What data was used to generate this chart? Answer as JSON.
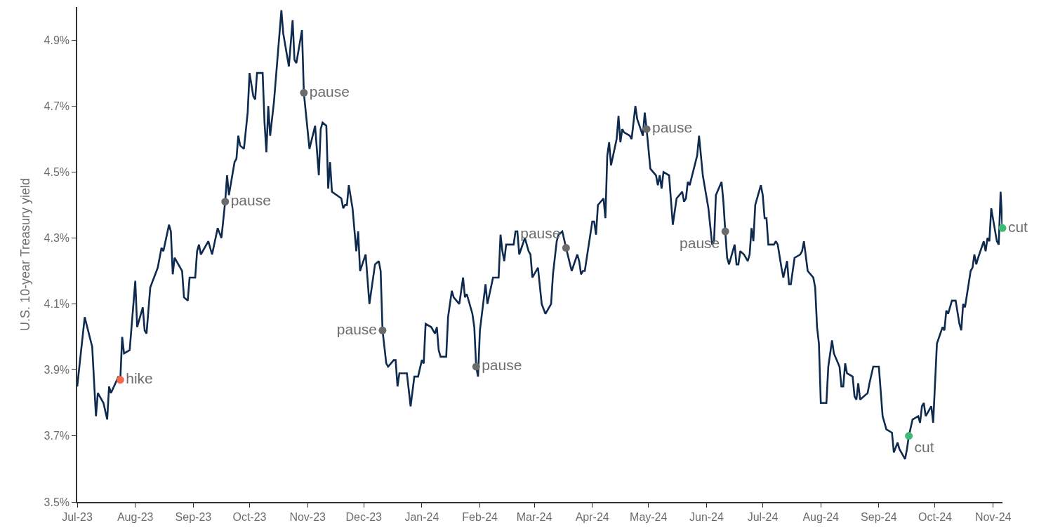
{
  "chart_data": {
    "type": "line",
    "ylabel": "U.S. 10-year Treasury yield",
    "xlim": [
      "2023-07-01",
      "2024-11-06"
    ],
    "xticks": [
      {
        "value": "2023-07-01",
        "label": "Jul-23"
      },
      {
        "value": "2023-08-01",
        "label": "Aug-23"
      },
      {
        "value": "2023-09-01",
        "label": "Sep-23"
      },
      {
        "value": "2023-10-01",
        "label": "Oct-23"
      },
      {
        "value": "2023-11-01",
        "label": "Nov-23"
      },
      {
        "value": "2023-12-01",
        "label": "Dec-23"
      },
      {
        "value": "2024-01-01",
        "label": "Jan-24"
      },
      {
        "value": "2024-02-01",
        "label": "Feb-24"
      },
      {
        "value": "2024-03-01",
        "label": "Mar-24"
      },
      {
        "value": "2024-04-01",
        "label": "Apr-24"
      },
      {
        "value": "2024-05-01",
        "label": "May-24"
      },
      {
        "value": "2024-06-01",
        "label": "Jun-24"
      },
      {
        "value": "2024-07-01",
        "label": "Jul-24"
      },
      {
        "value": "2024-08-01",
        "label": "Aug-24"
      },
      {
        "value": "2024-09-01",
        "label": "Sep-24"
      },
      {
        "value": "2024-10-01",
        "label": "Oct-24"
      },
      {
        "value": "2024-11-01",
        "label": "Nov-24"
      }
    ],
    "ylim": [
      3.5,
      5.0
    ],
    "yticks": [
      {
        "value": 3.5,
        "label": "3.5%"
      },
      {
        "value": 3.7,
        "label": "3.7%"
      },
      {
        "value": 3.9,
        "label": "3.9%"
      },
      {
        "value": 4.1,
        "label": "4.1%"
      },
      {
        "value": 4.3,
        "label": "4.3%"
      },
      {
        "value": 4.5,
        "label": "4.5%"
      },
      {
        "value": 4.7,
        "label": "4.7%"
      },
      {
        "value": 4.9,
        "label": "4.9%"
      }
    ],
    "legend": false,
    "series": [
      {
        "color": "#0f2a4f",
        "x": [
          "2023-07-01",
          "2023-07-05",
          "2023-07-09",
          "2023-07-11",
          "2023-07-12",
          "2023-07-15",
          "2023-07-17",
          "2023-07-18",
          "2023-07-19",
          "2023-07-23",
          "2023-07-24",
          "2023-07-25",
          "2023-07-26",
          "2023-07-29",
          "2023-08-01",
          "2023-08-02",
          "2023-08-05",
          "2023-08-06",
          "2023-08-07",
          "2023-08-09",
          "2023-08-13",
          "2023-08-15",
          "2023-08-16",
          "2023-08-19",
          "2023-08-20",
          "2023-08-21",
          "2023-08-22",
          "2023-08-26",
          "2023-08-27",
          "2023-08-29",
          "2023-08-30",
          "2023-09-02",
          "2023-09-03",
          "2023-09-04",
          "2023-09-05",
          "2023-09-09",
          "2023-09-11",
          "2023-09-14",
          "2023-09-16",
          "2023-09-18",
          "2023-09-19",
          "2023-09-20",
          "2023-09-23",
          "2023-09-24",
          "2023-09-25",
          "2023-09-26",
          "2023-09-28",
          "2023-09-30",
          "2023-10-01",
          "2023-10-03",
          "2023-10-04",
          "2023-10-05",
          "2023-10-08",
          "2023-10-09",
          "2023-10-10",
          "2023-10-11",
          "2023-10-12",
          "2023-10-14",
          "2023-10-16",
          "2023-10-18",
          "2023-10-19",
          "2023-10-22",
          "2023-10-24",
          "2023-10-25",
          "2023-10-26",
          "2023-10-29",
          "2023-10-30",
          "2023-11-02",
          "2023-11-05",
          "2023-11-07",
          "2023-11-08",
          "2023-11-09",
          "2023-11-11",
          "2023-11-12",
          "2023-11-13",
          "2023-11-14",
          "2023-11-19",
          "2023-11-20",
          "2023-11-21",
          "2023-11-22",
          "2023-11-23",
          "2023-11-25",
          "2023-11-27",
          "2023-11-28",
          "2023-11-29",
          "2023-12-02",
          "2023-12-04",
          "2023-12-07",
          "2023-12-09",
          "2023-12-10",
          "2023-12-11",
          "2023-12-13",
          "2023-12-14",
          "2023-12-17",
          "2023-12-18",
          "2023-12-19",
          "2023-12-20",
          "2023-12-21",
          "2023-12-24",
          "2023-12-26",
          "2023-12-28",
          "2023-12-30",
          "2024-01-01",
          "2024-01-02",
          "2024-01-03",
          "2024-01-06",
          "2024-01-08",
          "2024-01-09",
          "2024-01-10",
          "2024-01-11",
          "2024-01-14",
          "2024-01-15",
          "2024-01-17",
          "2024-01-18",
          "2024-01-21",
          "2024-01-23",
          "2024-01-24",
          "2024-01-25",
          "2024-01-28",
          "2024-01-29",
          "2024-01-30",
          "2024-01-31",
          "2024-02-01",
          "2024-02-04",
          "2024-02-05",
          "2024-02-08",
          "2024-02-11",
          "2024-02-12",
          "2024-02-13",
          "2024-02-14",
          "2024-02-15",
          "2024-02-19",
          "2024-02-20",
          "2024-02-21",
          "2024-02-22",
          "2024-02-25",
          "2024-02-27",
          "2024-02-28",
          "2024-02-29",
          "2024-03-03",
          "2024-03-05",
          "2024-03-07",
          "2024-03-10",
          "2024-03-11",
          "2024-03-13",
          "2024-03-14",
          "2024-03-16",
          "2024-03-18",
          "2024-03-21",
          "2024-03-24",
          "2024-03-25",
          "2024-03-26",
          "2024-03-27",
          "2024-03-28",
          "2024-04-01",
          "2024-04-02",
          "2024-04-03",
          "2024-04-04",
          "2024-04-07",
          "2024-04-08",
          "2024-04-09",
          "2024-04-10",
          "2024-04-11",
          "2024-04-14",
          "2024-04-15",
          "2024-04-16",
          "2024-04-17",
          "2024-04-18",
          "2024-04-21",
          "2024-04-22",
          "2024-04-24",
          "2024-04-25",
          "2024-04-28",
          "2024-04-29",
          "2024-04-30",
          "2024-05-02",
          "2024-05-05",
          "2024-05-06",
          "2024-05-07",
          "2024-05-08",
          "2024-05-09",
          "2024-05-12",
          "2024-05-14",
          "2024-05-16",
          "2024-05-19",
          "2024-05-20",
          "2024-05-21",
          "2024-05-22",
          "2024-05-23",
          "2024-05-27",
          "2024-05-28",
          "2024-05-30",
          "2024-06-02",
          "2024-06-04",
          "2024-06-05",
          "2024-06-06",
          "2024-06-09",
          "2024-06-10",
          "2024-06-11",
          "2024-06-12",
          "2024-06-13",
          "2024-06-16",
          "2024-06-17",
          "2024-06-18",
          "2024-06-19",
          "2024-06-21",
          "2024-06-23",
          "2024-06-24",
          "2024-06-25",
          "2024-06-26",
          "2024-06-27",
          "2024-06-30",
          "2024-07-01",
          "2024-07-02",
          "2024-07-03",
          "2024-07-04",
          "2024-07-07",
          "2024-07-08",
          "2024-07-09",
          "2024-07-11",
          "2024-07-12",
          "2024-07-14",
          "2024-07-15",
          "2024-07-16",
          "2024-07-18",
          "2024-07-21",
          "2024-07-22",
          "2024-07-23",
          "2024-07-25",
          "2024-07-28",
          "2024-07-29",
          "2024-07-30",
          "2024-07-31",
          "2024-08-01",
          "2024-08-04",
          "2024-08-05",
          "2024-08-07",
          "2024-08-08",
          "2024-08-11",
          "2024-08-12",
          "2024-08-13",
          "2024-08-14",
          "2024-08-15",
          "2024-08-18",
          "2024-08-19",
          "2024-08-20",
          "2024-08-21",
          "2024-08-22",
          "2024-08-26",
          "2024-08-27",
          "2024-08-29",
          "2024-09-01",
          "2024-09-03",
          "2024-09-05",
          "2024-09-08",
          "2024-09-09",
          "2024-09-11",
          "2024-09-12",
          "2024-09-15",
          "2024-09-16",
          "2024-09-17",
          "2024-09-19",
          "2024-09-22",
          "2024-09-23",
          "2024-09-24",
          "2024-09-25",
          "2024-09-26",
          "2024-09-29",
          "2024-09-30",
          "2024-10-01",
          "2024-10-02",
          "2024-10-05",
          "2024-10-06",
          "2024-10-07",
          "2024-10-08",
          "2024-10-10",
          "2024-10-12",
          "2024-10-14",
          "2024-10-15",
          "2024-10-16",
          "2024-10-17",
          "2024-10-20",
          "2024-10-21",
          "2024-10-22",
          "2024-10-23",
          "2024-10-24",
          "2024-10-27",
          "2024-10-28",
          "2024-10-29",
          "2024-10-30",
          "2024-10-31",
          "2024-11-03",
          "2024-11-04",
          "2024-11-05",
          "2024-11-06"
        ],
        "values": [
          3.85,
          4.06,
          3.97,
          3.76,
          3.83,
          3.8,
          3.75,
          3.85,
          3.83,
          3.88,
          3.87,
          4.0,
          3.95,
          3.96,
          4.17,
          4.03,
          4.09,
          4.02,
          4.01,
          4.15,
          4.21,
          4.27,
          4.26,
          4.34,
          4.32,
          4.19,
          4.24,
          4.2,
          4.12,
          4.11,
          4.18,
          4.18,
          4.26,
          4.28,
          4.25,
          4.29,
          4.25,
          4.33,
          4.3,
          4.41,
          4.49,
          4.43,
          4.53,
          4.54,
          4.61,
          4.58,
          4.57,
          4.68,
          4.8,
          4.73,
          4.72,
          4.8,
          4.8,
          4.65,
          4.56,
          4.7,
          4.61,
          4.71,
          4.85,
          4.99,
          4.92,
          4.82,
          4.96,
          4.84,
          4.83,
          4.93,
          4.74,
          4.57,
          4.64,
          4.49,
          4.63,
          4.65,
          4.64,
          4.45,
          4.53,
          4.44,
          4.42,
          4.39,
          4.4,
          4.4,
          4.46,
          4.39,
          4.26,
          4.32,
          4.2,
          4.25,
          4.1,
          4.22,
          4.23,
          4.2,
          4.02,
          3.92,
          3.91,
          3.93,
          3.93,
          3.85,
          3.89,
          3.89,
          3.89,
          3.79,
          3.88,
          3.88,
          3.93,
          3.92,
          4.04,
          4.03,
          4.01,
          4.03,
          3.96,
          3.94,
          3.94,
          4.06,
          4.14,
          4.12,
          4.1,
          4.18,
          4.12,
          4.13,
          4.07,
          4.03,
          3.91,
          3.88,
          4.02,
          4.16,
          4.1,
          4.18,
          4.18,
          4.31,
          4.26,
          4.23,
          4.28,
          4.28,
          4.32,
          4.32,
          4.25,
          4.3,
          4.26,
          4.25,
          4.18,
          4.21,
          4.1,
          4.07,
          4.1,
          4.19,
          4.29,
          4.31,
          4.32,
          4.27,
          4.2,
          4.25,
          4.23,
          4.19,
          4.2,
          4.2,
          4.35,
          4.35,
          4.31,
          4.4,
          4.42,
          4.36,
          4.55,
          4.59,
          4.52,
          4.6,
          4.67,
          4.59,
          4.63,
          4.62,
          4.61,
          4.6,
          4.7,
          4.66,
          4.61,
          4.68,
          4.63,
          4.51,
          4.49,
          4.46,
          4.49,
          4.45,
          4.5,
          4.49,
          4.34,
          4.42,
          4.44,
          4.41,
          4.42,
          4.47,
          4.46,
          4.55,
          4.61,
          4.49,
          4.39,
          4.28,
          4.29,
          4.43,
          4.47,
          4.41,
          4.32,
          4.24,
          4.22,
          4.28,
          4.22,
          4.22,
          4.26,
          4.25,
          4.23,
          4.25,
          4.33,
          4.29,
          4.4,
          4.46,
          4.43,
          4.36,
          4.36,
          4.28,
          4.28,
          4.29,
          4.28,
          4.21,
          4.18,
          4.23,
          4.16,
          4.16,
          4.24,
          4.25,
          4.26,
          4.29,
          4.2,
          4.18,
          4.15,
          4.03,
          3.98,
          3.8,
          3.8,
          3.91,
          3.99,
          3.95,
          3.91,
          3.85,
          3.85,
          3.92,
          3.89,
          3.88,
          3.82,
          3.81,
          3.86,
          3.81,
          3.83,
          3.86,
          3.91,
          3.91,
          3.76,
          3.72,
          3.71,
          3.65,
          3.68,
          3.66,
          3.63,
          3.66,
          3.7,
          3.75,
          3.76,
          3.74,
          3.79,
          3.8,
          3.76,
          3.79,
          3.74,
          3.86,
          3.98,
          4.03,
          4.02,
          4.08,
          4.07,
          4.11,
          4.11,
          4.04,
          4.02,
          4.1,
          4.09,
          4.2,
          4.21,
          4.25,
          4.22,
          4.24,
          4.29,
          4.26,
          4.3,
          4.29,
          4.39,
          4.29,
          4.28,
          4.44,
          4.33
        ]
      },
      {
        "type": "scatter",
        "name": "hike",
        "color": "#f4694b",
        "x": [
          "2023-07-24"
        ],
        "values": [
          3.87
        ]
      },
      {
        "type": "scatter",
        "name": "pause",
        "color": "#6b6b6b",
        "x": [
          "2023-09-18",
          "2023-10-30",
          "2023-12-11",
          "2024-01-30",
          "2024-03-18",
          "2024-04-30",
          "2024-06-11"
        ],
        "values": [
          4.41,
          4.74,
          4.02,
          3.91,
          4.27,
          4.63,
          4.32
        ]
      },
      {
        "type": "scatter",
        "name": "cut",
        "color": "#3dbb73",
        "x": [
          "2024-09-17",
          "2024-11-06"
        ],
        "values": [
          3.7,
          4.33
        ]
      }
    ]
  }
}
